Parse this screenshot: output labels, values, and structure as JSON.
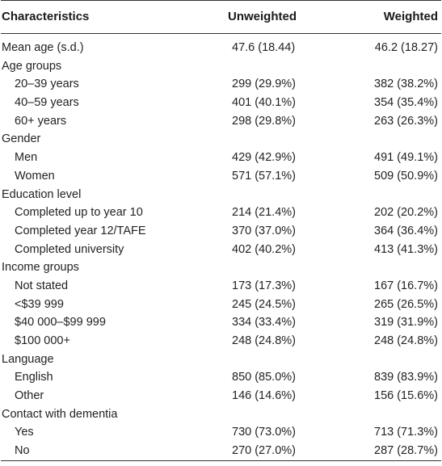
{
  "header": {
    "characteristics": "Characteristics",
    "unweighted": "Unweighted",
    "weighted": "Weighted"
  },
  "rows": [
    {
      "label": "Mean age (s.d.)",
      "indent": false,
      "unweighted": "47.6 (18.44)",
      "weighted": "46.2 (18.27)"
    },
    {
      "label": "Age groups",
      "indent": false,
      "unweighted": "",
      "weighted": ""
    },
    {
      "label": "20–39 years",
      "indent": true,
      "unweighted": "299 (29.9%)",
      "weighted": "382 (38.2%)"
    },
    {
      "label": "40–59 years",
      "indent": true,
      "unweighted": "401 (40.1%)",
      "weighted": "354 (35.4%)"
    },
    {
      "label": "60+ years",
      "indent": true,
      "unweighted": "298 (29.8%)",
      "weighted": "263 (26.3%)"
    },
    {
      "label": "Gender",
      "indent": false,
      "unweighted": "",
      "weighted": ""
    },
    {
      "label": "Men",
      "indent": true,
      "unweighted": "429 (42.9%)",
      "weighted": "491 (49.1%)"
    },
    {
      "label": "Women",
      "indent": true,
      "unweighted": "571 (57.1%)",
      "weighted": "509 (50.9%)"
    },
    {
      "label": "Education level",
      "indent": false,
      "unweighted": "",
      "weighted": ""
    },
    {
      "label": "Completed up to year 10",
      "indent": true,
      "unweighted": "214 (21.4%)",
      "weighted": "202 (20.2%)"
    },
    {
      "label": "Completed year 12/TAFE",
      "indent": true,
      "unweighted": "370 (37.0%)",
      "weighted": "364 (36.4%)"
    },
    {
      "label": "Completed university",
      "indent": true,
      "unweighted": "402 (40.2%)",
      "weighted": "413 (41.3%)"
    },
    {
      "label": "Income groups",
      "indent": false,
      "unweighted": "",
      "weighted": ""
    },
    {
      "label": "Not stated",
      "indent": true,
      "unweighted": "173 (17.3%)",
      "weighted": "167 (16.7%)"
    },
    {
      "label": "<$39 999",
      "indent": true,
      "unweighted": "245 (24.5%)",
      "weighted": "265 (26.5%)"
    },
    {
      "label": "$40 000–$99 999",
      "indent": true,
      "unweighted": "334 (33.4%)",
      "weighted": "319 (31.9%)"
    },
    {
      "label": "$100 000+",
      "indent": true,
      "unweighted": "248 (24.8%)",
      "weighted": "248 (24.8%)"
    },
    {
      "label": "Language",
      "indent": false,
      "unweighted": "",
      "weighted": ""
    },
    {
      "label": "English",
      "indent": true,
      "unweighted": "850 (85.0%)",
      "weighted": "839 (83.9%)"
    },
    {
      "label": "Other",
      "indent": true,
      "unweighted": "146 (14.6%)",
      "weighted": "156 (15.6%)"
    },
    {
      "label": "Contact with dementia",
      "indent": false,
      "unweighted": "",
      "weighted": ""
    },
    {
      "label": "Yes",
      "indent": true,
      "unweighted": "730 (73.0%)",
      "weighted": "713 (71.3%)"
    },
    {
      "label": "No",
      "indent": true,
      "unweighted": "270 (27.0%)",
      "weighted": "287 (28.7%)"
    }
  ]
}
